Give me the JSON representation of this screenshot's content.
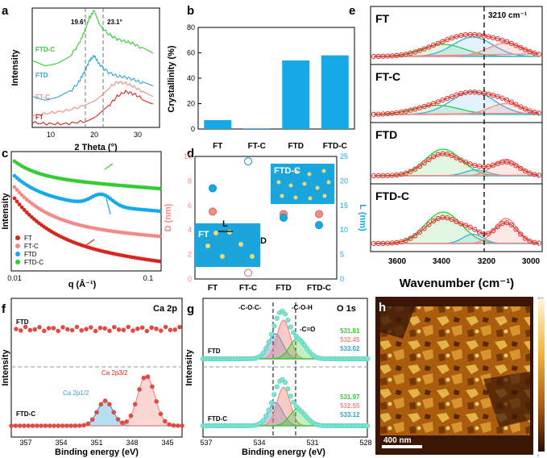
{
  "colors": {
    "red": "#d6261e",
    "pink": "#f08b86",
    "blue": "#2ba5d6",
    "green": "#33cc33",
    "cyan": "#16a9e8",
    "teal": "#5fd9c1",
    "orange": "#f2a23a"
  },
  "chart_data": [
    {
      "panel": "a",
      "type": "line",
      "xlabel": "2 Theta (°)",
      "ylabel": "Intensity",
      "xlim": [
        5,
        35
      ],
      "xticks": [
        "10",
        "20",
        "30"
      ],
      "reference_lines": [
        "19.6°",
        "23.1°"
      ],
      "series": [
        {
          "name": "FTD-C",
          "color": "green",
          "x": [
            5,
            8,
            11,
            14,
            16,
            17.5,
            18.5,
            19.6,
            21,
            23,
            25,
            27,
            29,
            31,
            34
          ],
          "y": [
            0.55,
            0.52,
            0.55,
            0.6,
            0.7,
            0.82,
            0.92,
            0.98,
            0.85,
            0.78,
            0.74,
            0.72,
            0.7,
            0.66,
            0.6
          ]
        },
        {
          "name": "FTD",
          "color": "blue",
          "x": [
            5,
            8,
            11,
            14,
            16,
            17.5,
            18.5,
            19.6,
            21,
            23,
            25,
            27,
            29,
            31,
            34
          ],
          "y": [
            0.26,
            0.24,
            0.26,
            0.3,
            0.38,
            0.48,
            0.56,
            0.6,
            0.52,
            0.46,
            0.43,
            0.42,
            0.4,
            0.37,
            0.34
          ]
        },
        {
          "name": "FT-C",
          "color": "pink",
          "x": [
            5,
            9,
            13,
            17,
            20,
            23,
            25,
            27,
            29,
            31,
            34
          ],
          "y": [
            0.1,
            0.12,
            0.14,
            0.18,
            0.24,
            0.33,
            0.38,
            0.37,
            0.34,
            0.3,
            0.26
          ]
        },
        {
          "name": "FT",
          "color": "red",
          "x": [
            5,
            9,
            13,
            17,
            20,
            23,
            25,
            27,
            29,
            31,
            34
          ],
          "y": [
            0.04,
            0.03,
            0.03,
            0.05,
            0.1,
            0.18,
            0.26,
            0.3,
            0.28,
            0.24,
            0.2
          ]
        }
      ]
    },
    {
      "panel": "b",
      "type": "bar",
      "ylabel": "Crystallinity (%)",
      "ylim": [
        0,
        80
      ],
      "yticks": [
        "0",
        "20",
        "40",
        "60",
        "80"
      ],
      "categories": [
        "FT",
        "FT-C",
        "FTD",
        "FTD-C"
      ],
      "values": [
        7,
        0.5,
        54,
        58
      ]
    },
    {
      "panel": "c",
      "type": "scatter",
      "xlabel": "q (Å⁻¹)",
      "ylabel": "Intensity",
      "xlim": [
        0.01,
        0.12
      ],
      "xticks": [
        "0.01",
        "0.1"
      ],
      "series": [
        {
          "name": "FT",
          "color": "red"
        },
        {
          "name": "FT-C",
          "color": "pink"
        },
        {
          "name": "FTD",
          "color": "cyan"
        },
        {
          "name": "FTD-C",
          "color": "green"
        }
      ]
    },
    {
      "panel": "d",
      "type": "scatter",
      "ylabel_left": "D (nm)",
      "ylabel_right": "L (nm)",
      "yleft_lim": [
        0,
        10
      ],
      "yleft_ticks": [
        "0",
        "2",
        "4",
        "6",
        "8",
        "10"
      ],
      "yright_lim": [
        0,
        25
      ],
      "yright_ticks": [
        "0",
        "5",
        "10",
        "15",
        "20",
        "25"
      ],
      "categories": [
        "FT",
        "FT-C",
        "FTD",
        "FTD-C"
      ],
      "D": [
        5.5,
        0.5,
        5.3,
        5.3
      ],
      "L": [
        18.5,
        24,
        12.5,
        11
      ],
      "insets": [
        "FT",
        "FTD-C"
      ],
      "inset_labels": [
        "L",
        "D"
      ]
    },
    {
      "panel": "e",
      "type": "line",
      "xlabel": "Wavenumber (cm⁻¹)",
      "xlim": [
        3600,
        3000
      ],
      "xticks": [
        "3600",
        "3400",
        "3200",
        "3000"
      ],
      "marker_line": "3210 cm⁻¹",
      "stacks": [
        "FT",
        "FT-C",
        "FTD",
        "FTD-C"
      ]
    },
    {
      "panel": "f",
      "type": "line",
      "title": "Ca 2p",
      "xlabel": "Binding energy (eV)",
      "ylabel": "Intensity",
      "xticks": [
        "357",
        "354",
        "351",
        "348",
        "345"
      ],
      "series_labels": [
        "FTD",
        "FTD-C"
      ],
      "peaks": [
        "Ca 2p1/2",
        "Ca 2p3/2"
      ]
    },
    {
      "panel": "g",
      "type": "line",
      "title": "O 1s",
      "xlabel": "Binding energy (eV)",
      "ylabel": "Intensity",
      "xticks": [
        "537",
        "534",
        "531",
        "528"
      ],
      "series_labels": [
        "FTD",
        "FTD-C"
      ],
      "groups": [
        "-C-O-C-",
        "-C-O-H",
        "-C=O"
      ],
      "FTD_peaks": [
        "531.81",
        "532.45",
        "533.02"
      ],
      "FTDC_peaks": [
        "531.97",
        "532.55",
        "533.12"
      ]
    },
    {
      "panel": "h",
      "type": "heatmap",
      "scale_bar": "400 nm",
      "colorbar_top": "10.0",
      "colorbar_bottom": "0"
    }
  ]
}
